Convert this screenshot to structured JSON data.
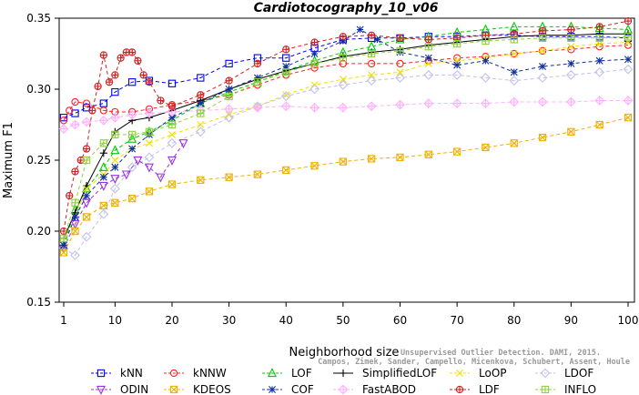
{
  "chart_data": {
    "type": "line",
    "title": "Cardiotocography_10_v06",
    "xlabel": "Neighborhood size",
    "ylabel": "Maximum F1",
    "xlim": [
      1,
      100
    ],
    "ylim": [
      0.15,
      0.35
    ],
    "xticks": [
      1,
      10,
      20,
      30,
      40,
      50,
      60,
      70,
      80,
      90,
      100
    ],
    "yticks": [
      0.15,
      0.2,
      0.25,
      0.3,
      0.35
    ],
    "grid": false,
    "legend_position": "bottom",
    "series": [
      {
        "name": "kNN",
        "color": "#0000ff",
        "dash": "4,3",
        "marker": "square",
        "x": [
          1,
          3,
          5,
          8,
          10,
          13,
          16,
          20,
          25,
          30,
          35,
          40,
          45,
          50,
          55,
          60,
          65,
          70,
          75,
          80,
          85,
          90,
          95,
          100
        ],
        "y": [
          0.28,
          0.283,
          0.287,
          0.29,
          0.298,
          0.305,
          0.306,
          0.304,
          0.308,
          0.318,
          0.322,
          0.322,
          0.329,
          0.335,
          0.336,
          0.336,
          0.337,
          0.337,
          0.338,
          0.338,
          0.337,
          0.337,
          0.337,
          0.336
        ]
      },
      {
        "name": "kNNW",
        "color": "#ff2020",
        "dash": "4,3",
        "marker": "circle",
        "x": [
          1,
          2,
          3,
          5,
          8,
          10,
          13,
          16,
          20,
          25,
          30,
          35,
          40,
          45,
          50,
          55,
          60,
          65,
          70,
          75,
          80,
          85,
          90,
          95,
          100
        ],
        "y": [
          0.278,
          0.285,
          0.291,
          0.29,
          0.285,
          0.284,
          0.284,
          0.286,
          0.289,
          0.292,
          0.296,
          0.303,
          0.31,
          0.315,
          0.318,
          0.318,
          0.318,
          0.32,
          0.322,
          0.323,
          0.325,
          0.327,
          0.328,
          0.33,
          0.331
        ]
      },
      {
        "name": "LOF",
        "color": "#00cc00",
        "dash": "4,3",
        "marker": "triangle",
        "x": [
          1,
          3,
          5,
          8,
          10,
          13,
          16,
          20,
          25,
          30,
          35,
          40,
          45,
          50,
          55,
          60,
          65,
          70,
          75,
          80,
          85,
          90,
          95,
          100
        ],
        "y": [
          0.19,
          0.215,
          0.23,
          0.245,
          0.257,
          0.265,
          0.27,
          0.278,
          0.29,
          0.298,
          0.305,
          0.313,
          0.32,
          0.326,
          0.33,
          0.335,
          0.337,
          0.34,
          0.342,
          0.344,
          0.344,
          0.344,
          0.343,
          0.342
        ]
      },
      {
        "name": "SimplifiedLOF",
        "color": "#000000",
        "dash": "none",
        "marker": "plus",
        "x": [
          1,
          3,
          5,
          8,
          10,
          13,
          16,
          20,
          25,
          30,
          35,
          40,
          45,
          50,
          55,
          60,
          65,
          70,
          75,
          80,
          85,
          90,
          95,
          100
        ],
        "y": [
          0.195,
          0.213,
          0.232,
          0.255,
          0.27,
          0.278,
          0.28,
          0.285,
          0.292,
          0.3,
          0.307,
          0.313,
          0.318,
          0.323,
          0.326,
          0.328,
          0.331,
          0.333,
          0.335,
          0.337,
          0.338,
          0.338,
          0.339,
          0.339
        ]
      },
      {
        "name": "LoOP",
        "color": "#f0e000",
        "dash": "4,3",
        "marker": "x",
        "x": [
          1,
          3,
          5,
          8,
          10,
          13,
          16,
          20,
          25,
          30,
          35,
          40,
          45,
          50,
          55,
          60,
          65,
          70,
          75,
          80,
          85,
          90,
          95,
          100
        ],
        "y": [
          0.19,
          0.21,
          0.23,
          0.24,
          0.25,
          0.258,
          0.262,
          0.268,
          0.275,
          0.282,
          0.288,
          0.296,
          0.303,
          0.307,
          0.31,
          0.312,
          0.318,
          0.32,
          0.322,
          0.325,
          0.327,
          0.33,
          0.332,
          0.333
        ]
      },
      {
        "name": "LDOF",
        "color": "#c0c0ee",
        "dash": "4,3",
        "marker": "diamond",
        "x": [
          1,
          3,
          5,
          8,
          10,
          13,
          16,
          20,
          25,
          30,
          35,
          40,
          45,
          50,
          55,
          60,
          65,
          70,
          75,
          80,
          85,
          90,
          95,
          100
        ],
        "y": [
          0.188,
          0.183,
          0.196,
          0.212,
          0.23,
          0.245,
          0.252,
          0.262,
          0.27,
          0.28,
          0.288,
          0.295,
          0.3,
          0.303,
          0.306,
          0.308,
          0.31,
          0.31,
          0.308,
          0.306,
          0.308,
          0.31,
          0.312,
          0.314
        ]
      },
      {
        "name": "ODIN",
        "color": "#9a30e0",
        "dash": "4,3",
        "marker": "triangle-down",
        "x": [
          1,
          3,
          5,
          8,
          10,
          12,
          14,
          16,
          18,
          20,
          22
        ],
        "y": [
          0.188,
          0.205,
          0.22,
          0.232,
          0.237,
          0.24,
          0.25,
          0.245,
          0.238,
          0.25,
          0.262
        ]
      },
      {
        "name": "KDEOS",
        "color": "#f0b000",
        "dash": "4,3",
        "marker": "square-x",
        "x": [
          1,
          3,
          5,
          8,
          10,
          13,
          16,
          20,
          25,
          30,
          35,
          40,
          45,
          50,
          55,
          60,
          65,
          70,
          75,
          80,
          85,
          90,
          95,
          100
        ],
        "y": [
          0.185,
          0.2,
          0.21,
          0.218,
          0.22,
          0.223,
          0.228,
          0.233,
          0.236,
          0.238,
          0.24,
          0.243,
          0.246,
          0.249,
          0.251,
          0.252,
          0.254,
          0.256,
          0.259,
          0.262,
          0.266,
          0.27,
          0.275,
          0.28
        ]
      },
      {
        "name": "COF",
        "color": "#1030a0",
        "dash": "4,3",
        "marker": "star",
        "x": [
          1,
          3,
          5,
          8,
          10,
          13,
          16,
          20,
          25,
          30,
          35,
          40,
          45,
          50,
          53,
          56,
          60,
          65,
          70,
          75,
          80,
          85,
          90,
          95,
          100
        ],
        "y": [
          0.19,
          0.21,
          0.225,
          0.238,
          0.245,
          0.258,
          0.268,
          0.28,
          0.29,
          0.3,
          0.308,
          0.316,
          0.325,
          0.334,
          0.342,
          0.335,
          0.326,
          0.322,
          0.317,
          0.32,
          0.312,
          0.316,
          0.318,
          0.32,
          0.321
        ]
      },
      {
        "name": "FastABOD",
        "color": "#ffb0ff",
        "dash": "4,3",
        "marker": "diamond-plus",
        "x": [
          1,
          3,
          5,
          8,
          10,
          13,
          16,
          20,
          25,
          30,
          35,
          40,
          45,
          50,
          55,
          60,
          65,
          70,
          75,
          80,
          85,
          90,
          95,
          100
        ],
        "y": [
          0.272,
          0.275,
          0.277,
          0.278,
          0.28,
          0.282,
          0.283,
          0.284,
          0.285,
          0.286,
          0.287,
          0.288,
          0.287,
          0.287,
          0.288,
          0.289,
          0.29,
          0.29,
          0.29,
          0.291,
          0.291,
          0.291,
          0.292,
          0.292
        ]
      },
      {
        "name": "LDF",
        "color": "#cc2222",
        "dash": "4,3",
        "marker": "circle-plus",
        "x": [
          1,
          2,
          3,
          4,
          5,
          6,
          7,
          8,
          9,
          10,
          11,
          12,
          13,
          14,
          15,
          16,
          18,
          20,
          25,
          30,
          35,
          40,
          45,
          50,
          55,
          60,
          65,
          70,
          75,
          80,
          85,
          90,
          95,
          100
        ],
        "y": [
          0.2,
          0.225,
          0.242,
          0.25,
          0.258,
          0.285,
          0.302,
          0.324,
          0.305,
          0.31,
          0.322,
          0.326,
          0.326,
          0.32,
          0.31,
          0.305,
          0.292,
          0.288,
          0.296,
          0.306,
          0.318,
          0.328,
          0.333,
          0.337,
          0.338,
          0.336,
          0.335,
          0.336,
          0.338,
          0.339,
          0.341,
          0.342,
          0.344,
          0.348
        ]
      },
      {
        "name": "INFLO",
        "color": "#90d040",
        "dash": "4,3",
        "marker": "square-plus",
        "x": [
          1,
          3,
          5,
          8,
          10,
          13,
          16,
          20,
          25,
          30,
          35,
          40,
          45,
          50,
          55,
          60,
          65,
          70,
          75,
          80,
          85,
          90,
          95,
          100
        ],
        "y": [
          0.195,
          0.22,
          0.25,
          0.262,
          0.268,
          0.268,
          0.27,
          0.275,
          0.283,
          0.295,
          0.305,
          0.312,
          0.318,
          0.322,
          0.325,
          0.327,
          0.33,
          0.332,
          0.334,
          0.335,
          0.336,
          0.336,
          0.336,
          0.337
        ]
      }
    ]
  },
  "credit_lines": [
    "Campos, Zimek, Sander, Campello, Micenkova, Schubert, Assent, Houle",
    "Unsupervised Outlier Detection. DAMI, 2015."
  ]
}
